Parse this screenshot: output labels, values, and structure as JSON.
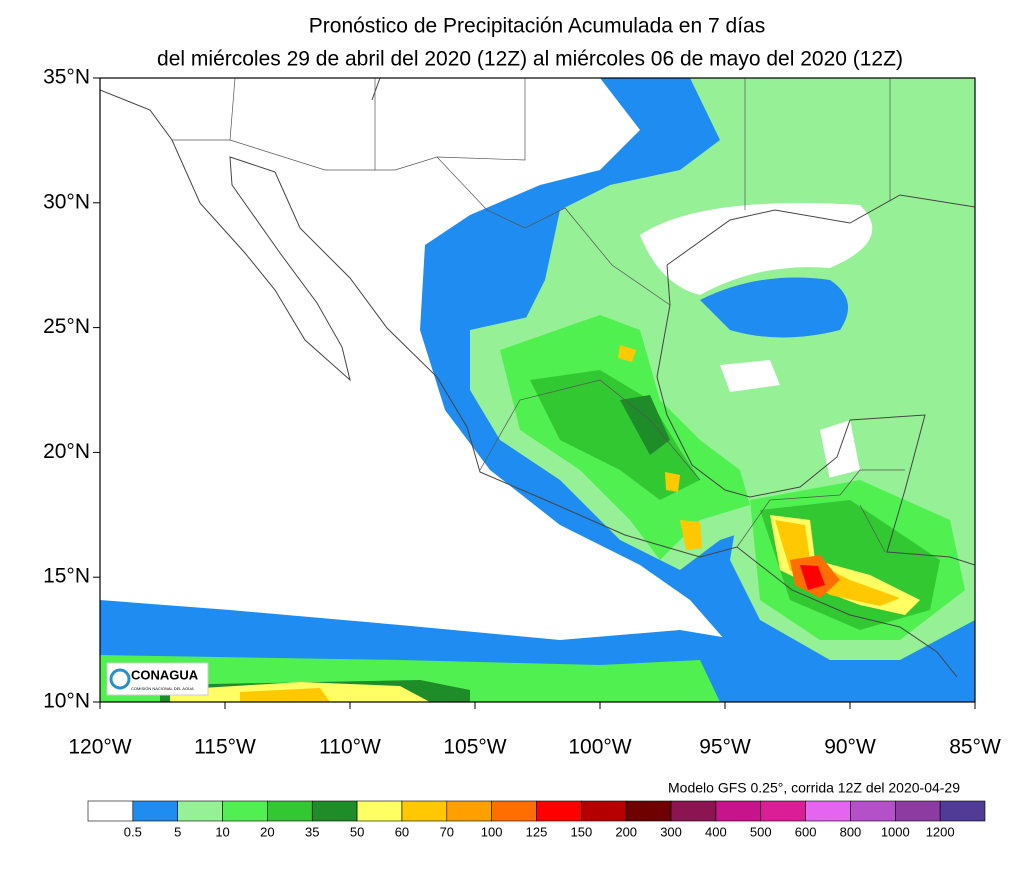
{
  "title": {
    "line1": "Pronóstico de Precipitación Acumulada en 7 días",
    "line2": "del miércoles 29 de abril del 2020 (12Z) al miércoles  06 de mayo del 2020 (12Z)"
  },
  "map": {
    "lat_labels": [
      "35°N",
      "30°N",
      "25°N",
      "20°N",
      "15°N",
      "10°N"
    ],
    "lon_labels": [
      "120°W",
      "115°W",
      "110°W",
      "105°W",
      "100°W",
      "95°W",
      "90°W",
      "85°W"
    ]
  },
  "note": "Modelo GFS 0.25°, corrida 12Z del 2020-04-29",
  "logo": {
    "name": "CONAGUA",
    "subtitle": "COMISIÓN NACIONAL DEL AGUA"
  },
  "colorbar": {
    "labels": [
      "0.5",
      "5",
      "10",
      "20",
      "35",
      "50",
      "60",
      "70",
      "100",
      "125",
      "150",
      "200",
      "300",
      "400",
      "500",
      "600",
      "800",
      "1000",
      "1200"
    ],
    "colors": [
      "#ffffff",
      "#1e8cf0",
      "#96f096",
      "#50f050",
      "#32c832",
      "#1e8c28",
      "#ffff64",
      "#ffc800",
      "#ffa000",
      "#ff6e00",
      "#ff0000",
      "#b40000",
      "#6e0000",
      "#8c1450",
      "#c8148c",
      "#dc1e96",
      "#e664f0",
      "#b450c8",
      "#8c3ca0",
      "#503c96"
    ]
  }
}
